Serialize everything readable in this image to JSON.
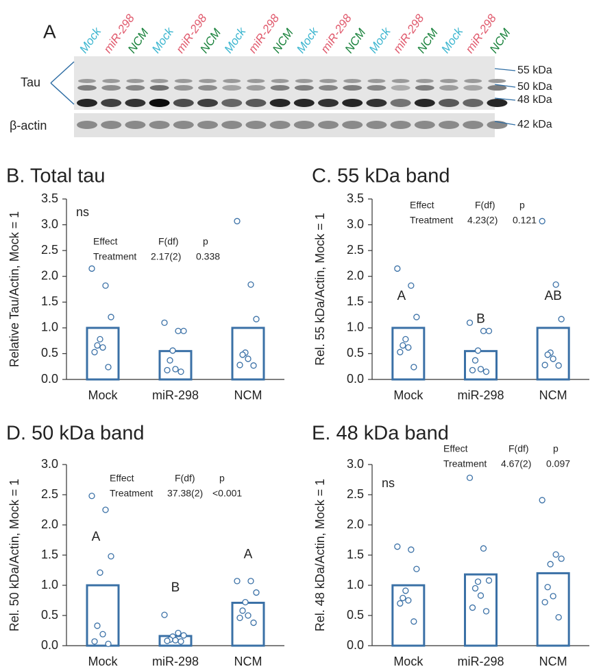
{
  "blot": {
    "panel": "A",
    "lanes": [
      "Mock",
      "miR-298",
      "NCM",
      "Mock",
      "miR-298",
      "NCM",
      "Mock",
      "miR-298",
      "NCM",
      "Mock",
      "miR-298",
      "NCM",
      "Mock",
      "miR-298",
      "NCM",
      "Mock",
      "miR-298",
      "NCM"
    ],
    "lane_colors": [
      "#3ab5cf",
      "#e05a6d",
      "#17813a",
      "#3ab5cf",
      "#e05a6d",
      "#17813a",
      "#3ab5cf",
      "#e05a6d",
      "#17813a",
      "#3ab5cf",
      "#e05a6d",
      "#17813a",
      "#3ab5cf",
      "#e05a6d",
      "#17813a",
      "#3ab5cf",
      "#e05a6d",
      "#17813a"
    ],
    "tau_label": "Tau",
    "actin_label": "β-actin",
    "markers": [
      "55 kDa",
      "50 kDa",
      "48 kDa",
      "42 kDa"
    ]
  },
  "chart_data": [
    {
      "type": "bar",
      "title": "B. Total tau",
      "y_label": "Relative Tau/Actin, Mock = 1",
      "categories": [
        "Mock",
        "miR-298",
        "NCM"
      ],
      "values": [
        1.0,
        0.55,
        1.0
      ],
      "color": "#3a70a6",
      "points": [
        [
          2.15,
          1.82,
          1.21,
          0.78,
          0.66,
          0.62,
          0.53,
          0.24
        ],
        [
          1.1,
          0.94,
          0.94,
          0.56,
          0.37,
          0.2,
          0.18,
          0.15
        ],
        [
          3.07,
          1.84,
          1.17,
          0.52,
          0.48,
          0.4,
          0.28,
          0.27
        ]
      ],
      "ylim": [
        0,
        3.5
      ],
      "yticks": [
        {
          "value": 0,
          "label": "0.0"
        },
        0.5,
        {
          "value": 1,
          "label": "1.0"
        },
        1.5,
        {
          "value": 2,
          "label": "2.0"
        },
        2.5,
        {
          "value": 3,
          "label": "3.0"
        },
        3.5
      ],
      "annotation": "ns",
      "stats": {
        "header": [
          "Effect",
          "F(df)",
          "p"
        ],
        "row": [
          "Treatment",
          "2.17(2)",
          "0.338"
        ]
      }
    },
    {
      "type": "bar",
      "title": "C. 55 kDa band",
      "y_label": "Rel. 55 kDa/Actin, Mock = 1",
      "categories": [
        "Mock",
        "miR-298",
        "NCM"
      ],
      "values": [
        1.0,
        0.55,
        1.0
      ],
      "color": "#3a70a6",
      "points": [
        [
          2.15,
          1.82,
          1.21,
          0.78,
          0.66,
          0.62,
          0.53,
          0.24
        ],
        [
          1.1,
          0.94,
          0.94,
          0.56,
          0.37,
          0.2,
          0.18,
          0.15
        ],
        [
          3.07,
          1.84,
          1.17,
          0.52,
          0.48,
          0.4,
          0.28,
          0.27
        ]
      ],
      "ylim": [
        0,
        3.5
      ],
      "yticks": [
        {
          "value": 0,
          "label": "0.0"
        },
        0.5,
        {
          "value": 1,
          "label": "1.0"
        },
        1.5,
        {
          "value": 2,
          "label": "2.0"
        },
        2.5,
        {
          "value": 3,
          "label": "3.0"
        },
        3.5
      ],
      "letters": [
        "A",
        "B",
        "AB"
      ],
      "stats": {
        "header": [
          "Effect",
          "F(df)",
          "p"
        ],
        "row": [
          "Treatment",
          "4.23(2)",
          "0.121"
        ]
      }
    },
    {
      "type": "bar",
      "title": "D. 50 kDa band",
      "y_label": "Rel. 50 kDa/Actin, Mock = 1",
      "categories": [
        "Mock",
        "miR-298",
        "NCM"
      ],
      "values": [
        1.0,
        0.16,
        0.71
      ],
      "color": "#3a70a6",
      "points": [
        [
          2.48,
          2.25,
          1.48,
          1.21,
          0.33,
          0.19,
          0.07,
          0.03
        ],
        [
          0.51,
          0.21,
          0.17,
          0.15,
          0.1,
          0.09,
          0.08,
          0.07
        ],
        [
          1.07,
          1.07,
          0.88,
          0.72,
          0.58,
          0.5,
          0.46,
          0.38
        ]
      ],
      "ylim": [
        0,
        3.0
      ],
      "yticks": [
        {
          "value": 0,
          "label": "0.0"
        },
        0.5,
        {
          "value": 1,
          "label": "1.0"
        },
        1.5,
        {
          "value": 2,
          "label": "2.0"
        },
        2.5,
        {
          "value": 3,
          "label": "3.0"
        }
      ],
      "letters": [
        "A",
        "B",
        "A"
      ],
      "stats": {
        "header": [
          "Effect",
          "F(df)",
          "p"
        ],
        "row": [
          "Treatment",
          "37.38(2)",
          "<0.001"
        ]
      }
    },
    {
      "type": "bar",
      "title": "E. 48 kDa band",
      "y_label": "Rel. 48 kDa/Actin, Mock = 1",
      "categories": [
        "Mock",
        "miR-298",
        "NCM"
      ],
      "values": [
        1.0,
        1.18,
        1.2
      ],
      "color": "#3a70a6",
      "points": [
        [
          1.64,
          1.59,
          1.27,
          0.91,
          0.79,
          0.75,
          0.7,
          0.4
        ],
        [
          2.78,
          1.61,
          1.08,
          1.06,
          0.95,
          0.83,
          0.63,
          0.57
        ],
        [
          2.41,
          1.51,
          1.44,
          1.35,
          0.97,
          0.82,
          0.72,
          0.47
        ]
      ],
      "ylim": [
        0,
        3.0
      ],
      "yticks": [
        {
          "value": 0,
          "label": "0.0"
        },
        0.5,
        {
          "value": 1,
          "label": "1.0"
        },
        1.5,
        {
          "value": 2,
          "label": "2.0"
        },
        2.5,
        {
          "value": 3,
          "label": "3.0"
        }
      ],
      "annotation": "ns",
      "stats": {
        "header": [
          "Effect",
          "F(df)",
          "p"
        ],
        "row": [
          "Treatment",
          "4.67(2)",
          "0.097"
        ]
      }
    }
  ]
}
